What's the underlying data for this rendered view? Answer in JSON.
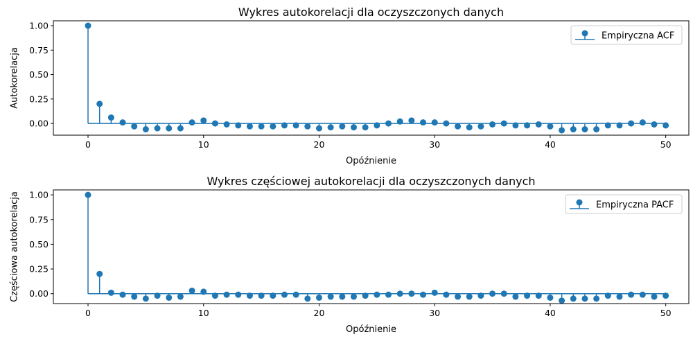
{
  "chart_data": [
    {
      "type": "stem",
      "title": "Wykres autokorelacji dla oczyszczonych danych",
      "xlabel": "Opóźnienie",
      "ylabel": "Autokorelacja",
      "xlim": [
        -3,
        52
      ],
      "ylim": [
        -0.12,
        1.05
      ],
      "xticks": [
        0,
        10,
        20,
        30,
        40,
        50
      ],
      "yticks": [
        0.0,
        0.25,
        0.5,
        0.75,
        1.0
      ],
      "ytick_labels": [
        "0.00",
        "0.25",
        "0.50",
        "0.75",
        "1.00"
      ],
      "grid": false,
      "legend": {
        "location": "upper right",
        "entries": [
          "Empiryczna ACF"
        ]
      },
      "color": "#1f77b4",
      "series": [
        {
          "name": "Empiryczna ACF",
          "x": [
            0,
            1,
            2,
            3,
            4,
            5,
            6,
            7,
            8,
            9,
            10,
            11,
            12,
            13,
            14,
            15,
            16,
            17,
            18,
            19,
            20,
            21,
            22,
            23,
            24,
            25,
            26,
            27,
            28,
            29,
            30,
            31,
            32,
            33,
            34,
            35,
            36,
            37,
            38,
            39,
            40,
            41,
            42,
            43,
            44,
            45,
            46,
            47,
            48,
            49,
            50
          ],
          "values": [
            1.0,
            0.2,
            0.06,
            0.01,
            -0.03,
            -0.06,
            -0.05,
            -0.05,
            -0.05,
            0.01,
            0.03,
            0.0,
            -0.01,
            -0.02,
            -0.03,
            -0.03,
            -0.03,
            -0.02,
            -0.02,
            -0.03,
            -0.05,
            -0.04,
            -0.03,
            -0.04,
            -0.04,
            -0.02,
            0.0,
            0.02,
            0.03,
            0.01,
            0.01,
            0.0,
            -0.03,
            -0.04,
            -0.03,
            -0.01,
            0.0,
            -0.02,
            -0.02,
            -0.01,
            -0.03,
            -0.07,
            -0.06,
            -0.06,
            -0.06,
            -0.02,
            -0.02,
            0.0,
            0.01,
            -0.01,
            -0.02
          ]
        }
      ]
    },
    {
      "type": "stem",
      "title": "Wykres częściowej autokorelacji dla oczyszczonych danych",
      "xlabel": "Opóźnienie",
      "ylabel": "Częściowa autokorelacja",
      "xlim": [
        -3,
        52
      ],
      "ylim": [
        -0.1,
        1.05
      ],
      "xticks": [
        0,
        10,
        20,
        30,
        40,
        50
      ],
      "yticks": [
        0.0,
        0.25,
        0.5,
        0.75,
        1.0
      ],
      "ytick_labels": [
        "0.00",
        "0.25",
        "0.50",
        "0.75",
        "1.00"
      ],
      "grid": false,
      "legend": {
        "location": "upper right",
        "entries": [
          "Empiryczna PACF"
        ]
      },
      "color": "#1f77b4",
      "series": [
        {
          "name": "Empiryczna PACF",
          "x": [
            0,
            1,
            2,
            3,
            4,
            5,
            6,
            7,
            8,
            9,
            10,
            11,
            12,
            13,
            14,
            15,
            16,
            17,
            18,
            19,
            20,
            21,
            22,
            23,
            24,
            25,
            26,
            27,
            28,
            29,
            30,
            31,
            32,
            33,
            34,
            35,
            36,
            37,
            38,
            39,
            40,
            41,
            42,
            43,
            44,
            45,
            46,
            47,
            48,
            49,
            50
          ],
          "values": [
            1.0,
            0.2,
            0.01,
            -0.01,
            -0.03,
            -0.05,
            -0.02,
            -0.04,
            -0.03,
            0.03,
            0.02,
            -0.02,
            -0.01,
            -0.01,
            -0.02,
            -0.02,
            -0.02,
            -0.01,
            -0.01,
            -0.05,
            -0.04,
            -0.03,
            -0.03,
            -0.03,
            -0.02,
            -0.01,
            -0.01,
            0.0,
            0.0,
            -0.01,
            0.01,
            -0.01,
            -0.03,
            -0.03,
            -0.02,
            0.0,
            0.0,
            -0.03,
            -0.02,
            -0.02,
            -0.04,
            -0.07,
            -0.05,
            -0.05,
            -0.05,
            -0.02,
            -0.03,
            -0.01,
            -0.01,
            -0.03,
            -0.02
          ]
        }
      ]
    }
  ]
}
